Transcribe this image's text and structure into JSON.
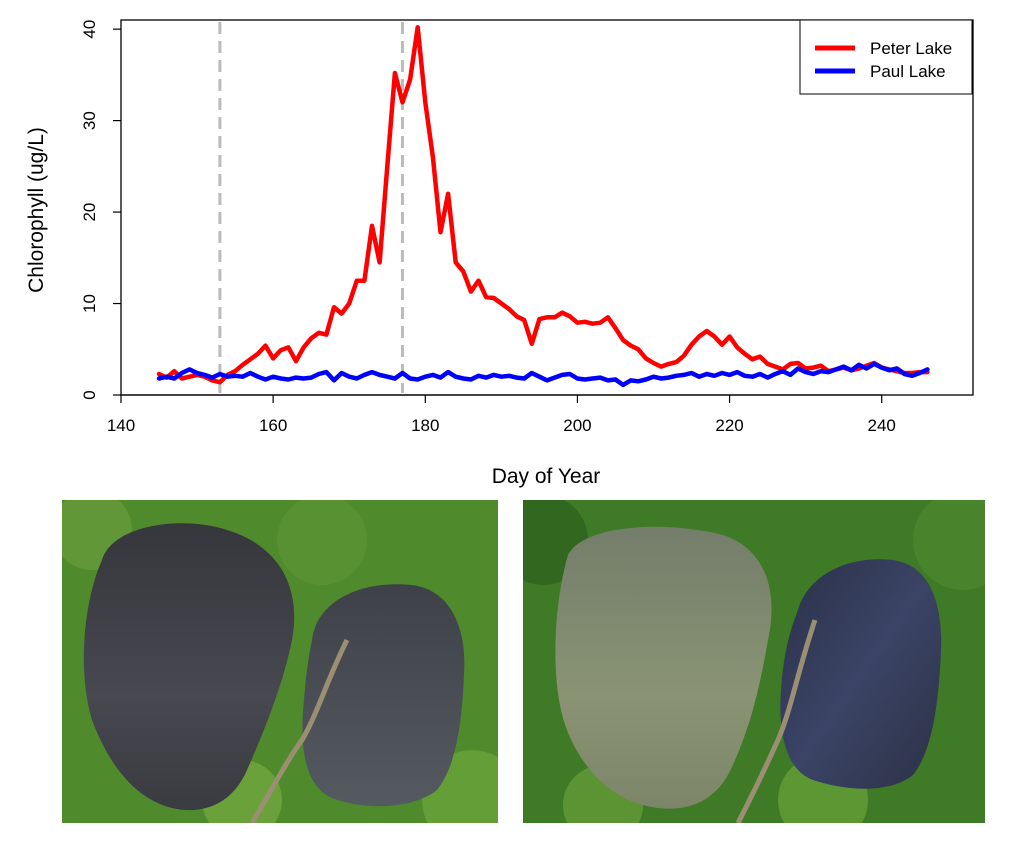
{
  "chart_data": {
    "type": "line",
    "xlabel": "Day of Year",
    "ylabel": "Chlorophyll (ug/L)",
    "xlim": [
      140,
      252
    ],
    "ylim": [
      0,
      41
    ],
    "x_ticks": [
      140,
      160,
      180,
      200,
      220,
      240
    ],
    "y_ticks": [
      0,
      10,
      20,
      30,
      40
    ],
    "grid": false,
    "legend_position": "top-right",
    "vertical_reference_lines": [
      153,
      177
    ],
    "reference_line_color": "#bbbbbb",
    "series": [
      {
        "name": "Peter Lake",
        "color": "#ff0000",
        "points": [
          [
            145,
            2.3
          ],
          [
            146,
            1.9
          ],
          [
            147,
            2.6
          ],
          [
            148,
            1.8
          ],
          [
            149,
            2.0
          ],
          [
            150,
            2.2
          ],
          [
            151,
            2.0
          ],
          [
            152,
            1.6
          ],
          [
            153,
            1.4
          ],
          [
            154,
            2.2
          ],
          [
            155,
            2.6
          ],
          [
            156,
            3.3
          ],
          [
            157,
            3.9
          ],
          [
            158,
            4.5
          ],
          [
            159,
            5.4
          ],
          [
            160,
            4.0
          ],
          [
            161,
            4.9
          ],
          [
            162,
            5.2
          ],
          [
            163,
            3.7
          ],
          [
            164,
            5.2
          ],
          [
            165,
            6.2
          ],
          [
            166,
            6.8
          ],
          [
            167,
            6.6
          ],
          [
            168,
            9.6
          ],
          [
            169,
            8.9
          ],
          [
            170,
            10.0
          ],
          [
            171,
            12.5
          ],
          [
            172,
            12.5
          ],
          [
            173,
            18.5
          ],
          [
            174,
            14.5
          ],
          [
            175,
            25.0
          ],
          [
            176,
            35.2
          ],
          [
            177,
            32.0
          ],
          [
            178,
            34.5
          ],
          [
            179,
            40.2
          ],
          [
            180,
            32.0
          ],
          [
            181,
            26.0
          ],
          [
            182,
            17.8
          ],
          [
            183,
            22.0
          ],
          [
            184,
            14.5
          ],
          [
            185,
            13.5
          ],
          [
            186,
            11.3
          ],
          [
            187,
            12.5
          ],
          [
            188,
            10.7
          ],
          [
            189,
            10.6
          ],
          [
            190,
            10.0
          ],
          [
            191,
            9.4
          ],
          [
            192,
            8.6
          ],
          [
            193,
            8.2
          ],
          [
            194,
            5.6
          ],
          [
            195,
            8.3
          ],
          [
            196,
            8.5
          ],
          [
            197,
            8.5
          ],
          [
            198,
            9.0
          ],
          [
            199,
            8.6
          ],
          [
            200,
            7.9
          ],
          [
            201,
            8.0
          ],
          [
            202,
            7.8
          ],
          [
            203,
            7.9
          ],
          [
            204,
            8.5
          ],
          [
            205,
            7.3
          ],
          [
            206,
            6.0
          ],
          [
            207,
            5.4
          ],
          [
            208,
            5.0
          ],
          [
            209,
            4.0
          ],
          [
            210,
            3.5
          ],
          [
            211,
            3.1
          ],
          [
            212,
            3.4
          ],
          [
            213,
            3.6
          ],
          [
            214,
            4.3
          ],
          [
            215,
            5.5
          ],
          [
            216,
            6.4
          ],
          [
            217,
            7.0
          ],
          [
            218,
            6.4
          ],
          [
            219,
            5.5
          ],
          [
            220,
            6.4
          ],
          [
            221,
            5.2
          ],
          [
            222,
            4.5
          ],
          [
            223,
            3.9
          ],
          [
            224,
            4.2
          ],
          [
            225,
            3.4
          ],
          [
            226,
            3.1
          ],
          [
            227,
            2.8
          ],
          [
            228,
            3.4
          ],
          [
            229,
            3.5
          ],
          [
            230,
            2.9
          ],
          [
            231,
            3.0
          ],
          [
            232,
            3.2
          ],
          [
            233,
            2.6
          ],
          [
            234,
            2.8
          ],
          [
            235,
            3.0
          ],
          [
            236,
            2.7
          ],
          [
            237,
            2.9
          ],
          [
            238,
            3.2
          ],
          [
            239,
            3.5
          ],
          [
            240,
            3.0
          ],
          [
            241,
            2.8
          ],
          [
            242,
            2.6
          ],
          [
            243,
            2.4
          ],
          [
            244,
            2.4
          ],
          [
            245,
            2.5
          ],
          [
            246,
            2.5
          ]
        ]
      },
      {
        "name": "Paul Lake",
        "color": "#0000ff",
        "points": [
          [
            145,
            1.8
          ],
          [
            146,
            2.0
          ],
          [
            147,
            1.8
          ],
          [
            148,
            2.4
          ],
          [
            149,
            2.8
          ],
          [
            150,
            2.4
          ],
          [
            151,
            2.2
          ],
          [
            152,
            1.9
          ],
          [
            153,
            2.3
          ],
          [
            154,
            2.0
          ],
          [
            155,
            2.1
          ],
          [
            156,
            2.0
          ],
          [
            157,
            2.4
          ],
          [
            158,
            2.0
          ],
          [
            159,
            1.7
          ],
          [
            160,
            2.0
          ],
          [
            161,
            1.8
          ],
          [
            162,
            1.7
          ],
          [
            163,
            1.9
          ],
          [
            164,
            1.8
          ],
          [
            165,
            1.9
          ],
          [
            166,
            2.3
          ],
          [
            167,
            2.5
          ],
          [
            168,
            1.6
          ],
          [
            169,
            2.4
          ],
          [
            170,
            2.0
          ],
          [
            171,
            1.8
          ],
          [
            172,
            2.2
          ],
          [
            173,
            2.5
          ],
          [
            174,
            2.2
          ],
          [
            175,
            2.0
          ],
          [
            176,
            1.8
          ],
          [
            177,
            2.4
          ],
          [
            178,
            1.8
          ],
          [
            179,
            1.7
          ],
          [
            180,
            2.0
          ],
          [
            181,
            2.2
          ],
          [
            182,
            1.9
          ],
          [
            183,
            2.5
          ],
          [
            184,
            2.0
          ],
          [
            185,
            1.8
          ],
          [
            186,
            1.7
          ],
          [
            187,
            2.1
          ],
          [
            188,
            1.9
          ],
          [
            189,
            2.2
          ],
          [
            190,
            2.0
          ],
          [
            191,
            2.1
          ],
          [
            192,
            1.9
          ],
          [
            193,
            1.8
          ],
          [
            194,
            2.4
          ],
          [
            195,
            2.0
          ],
          [
            196,
            1.6
          ],
          [
            197,
            1.9
          ],
          [
            198,
            2.2
          ],
          [
            199,
            2.3
          ],
          [
            200,
            1.8
          ],
          [
            201,
            1.7
          ],
          [
            202,
            1.8
          ],
          [
            203,
            1.9
          ],
          [
            204,
            1.6
          ],
          [
            205,
            1.7
          ],
          [
            206,
            1.1
          ],
          [
            207,
            1.6
          ],
          [
            208,
            1.5
          ],
          [
            209,
            1.7
          ],
          [
            210,
            2.0
          ],
          [
            211,
            1.8
          ],
          [
            212,
            1.9
          ],
          [
            213,
            2.1
          ],
          [
            214,
            2.2
          ],
          [
            215,
            2.4
          ],
          [
            216,
            2.0
          ],
          [
            217,
            2.3
          ],
          [
            218,
            2.1
          ],
          [
            219,
            2.4
          ],
          [
            220,
            2.2
          ],
          [
            221,
            2.5
          ],
          [
            222,
            2.1
          ],
          [
            223,
            2.0
          ],
          [
            224,
            2.3
          ],
          [
            225,
            1.9
          ],
          [
            226,
            2.3
          ],
          [
            227,
            2.6
          ],
          [
            228,
            2.2
          ],
          [
            229,
            2.9
          ],
          [
            230,
            2.5
          ],
          [
            231,
            2.3
          ],
          [
            232,
            2.6
          ],
          [
            233,
            2.5
          ],
          [
            234,
            2.8
          ],
          [
            235,
            3.1
          ],
          [
            236,
            2.7
          ],
          [
            237,
            3.3
          ],
          [
            238,
            2.9
          ],
          [
            239,
            3.4
          ],
          [
            240,
            3.0
          ],
          [
            241,
            2.7
          ],
          [
            242,
            2.9
          ],
          [
            243,
            2.3
          ],
          [
            244,
            2.1
          ],
          [
            245,
            2.4
          ],
          [
            246,
            2.8
          ]
        ]
      }
    ]
  },
  "photos": [
    {
      "name": "aerial-photo-left",
      "colors": {
        "forest": "#4f8a2c",
        "lake_left": "#3c3d42",
        "lake_right": "#4a4e55"
      }
    },
    {
      "name": "aerial-photo-right",
      "colors": {
        "forest": "#3f7a26",
        "lake_left": "#7d8a70",
        "lake_right": "#2f3550"
      }
    }
  ]
}
